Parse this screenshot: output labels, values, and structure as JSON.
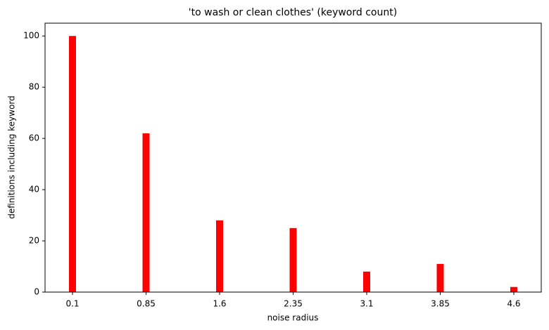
{
  "chart_data": {
    "type": "bar",
    "title": "'to wash or clean clothes' (keyword count)",
    "x_label": "noise radius",
    "y_label": "definitions including keyword",
    "categories": [
      "0.1",
      "0.85",
      "1.6",
      "2.35",
      "3.1",
      "3.85",
      "4.6"
    ],
    "values": [
      100,
      62,
      28,
      25,
      8,
      11,
      2
    ],
    "color": "#ff0000",
    "ylim": [
      0,
      105
    ],
    "yticks": [
      0,
      20,
      40,
      60,
      80,
      100
    ],
    "grid": false
  }
}
